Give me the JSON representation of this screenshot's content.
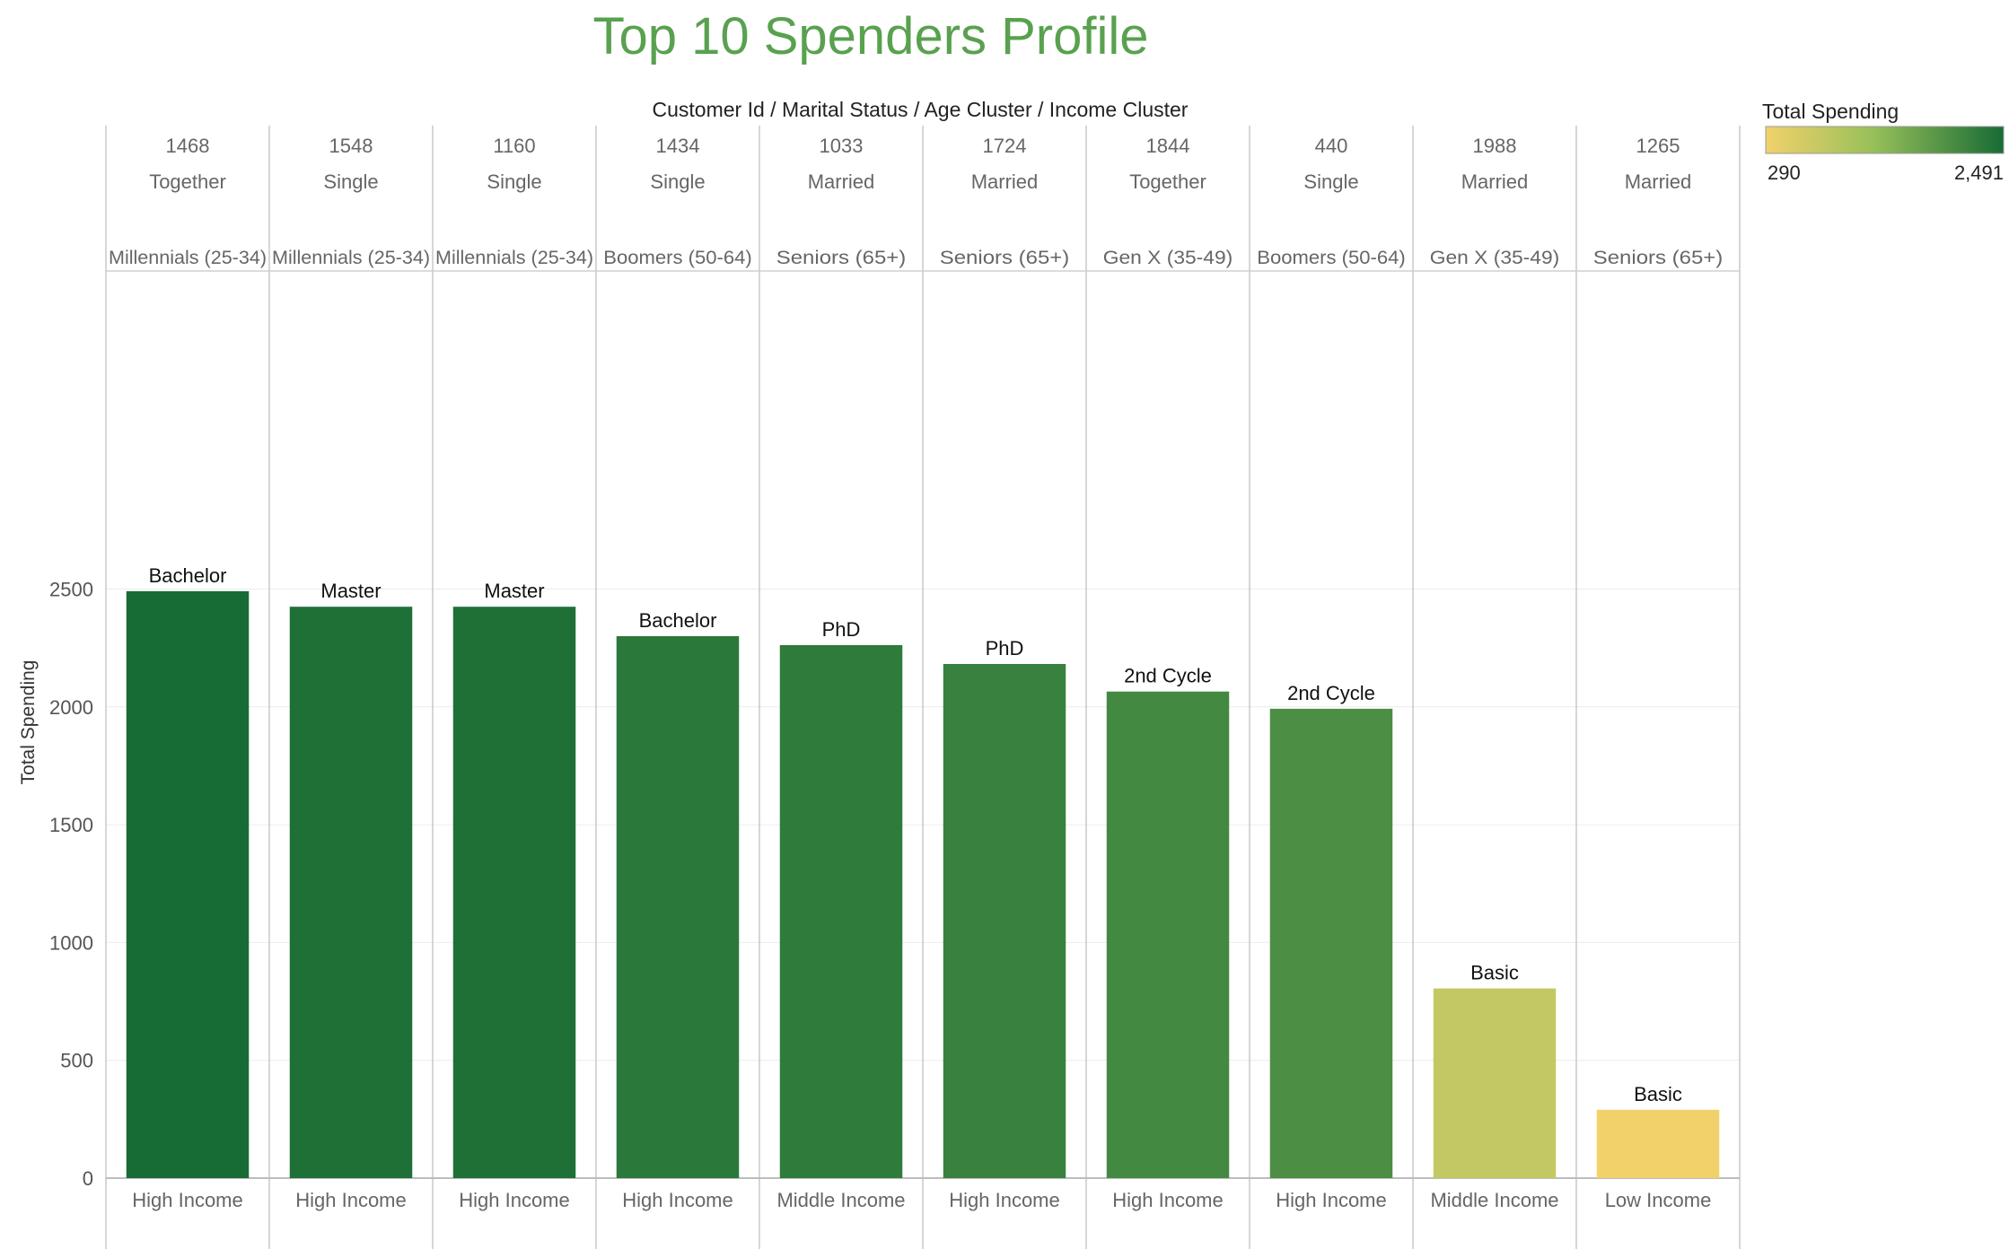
{
  "chart_data": {
    "type": "bar",
    "title": "Top 10 Spenders Profile",
    "header_label": "Customer Id  /  Marital Status  /  Age Cluster  /  Income Cluster",
    "ylabel": "Total Spending",
    "ylim": [
      0,
      2700
    ],
    "yticks": [
      0,
      500,
      1000,
      1500,
      2000,
      2500
    ],
    "grid": true,
    "legend": {
      "title": "Total Spending",
      "min_label": "290",
      "max_label": "2,491",
      "min": 290,
      "max": 2491,
      "color_low": "#f2d16b",
      "color_mid": "#98c05a",
      "color_high": "#176b35",
      "position": "top-right"
    },
    "title_color": "#59a14f",
    "bars": [
      {
        "customer_id": "1468",
        "marital_status": "Together",
        "age_cluster": "Millennials (25-34)",
        "income_cluster": "High Income",
        "education": "Bachelor",
        "value": 2491
      },
      {
        "customer_id": "1548",
        "marital_status": "Single",
        "age_cluster": "Millennials (25-34)",
        "income_cluster": "High Income",
        "education": "Master",
        "value": 2425
      },
      {
        "customer_id": "1160",
        "marital_status": "Single",
        "age_cluster": "Millennials (25-34)",
        "income_cluster": "High Income",
        "education": "Master",
        "value": 2425
      },
      {
        "customer_id": "1434",
        "marital_status": "Single",
        "age_cluster": "Boomers (50-64)",
        "income_cluster": "High Income",
        "education": "Bachelor",
        "value": 2300
      },
      {
        "customer_id": "1033",
        "marital_status": "Married",
        "age_cluster": "Seniors (65+)",
        "income_cluster": "Middle Income",
        "education": "PhD",
        "value": 2262
      },
      {
        "customer_id": "1724",
        "marital_status": "Married",
        "age_cluster": "Seniors (65+)",
        "income_cluster": "High Income",
        "education": "PhD",
        "value": 2182
      },
      {
        "customer_id": "1844",
        "marital_status": "Together",
        "age_cluster": "Gen X (35-49)",
        "income_cluster": "High Income",
        "education": "2nd Cycle",
        "value": 2065
      },
      {
        "customer_id": "440",
        "marital_status": "Single",
        "age_cluster": "Boomers (50-64)",
        "income_cluster": "High Income",
        "education": "2nd Cycle",
        "value": 1992
      },
      {
        "customer_id": "1988",
        "marital_status": "Married",
        "age_cluster": "Gen X (35-49)",
        "income_cluster": "Middle Income",
        "education": "Basic",
        "value": 805
      },
      {
        "customer_id": "1265",
        "marital_status": "Married",
        "age_cluster": "Seniors (65+)",
        "income_cluster": "Low Income",
        "education": "Basic",
        "value": 290
      }
    ]
  }
}
